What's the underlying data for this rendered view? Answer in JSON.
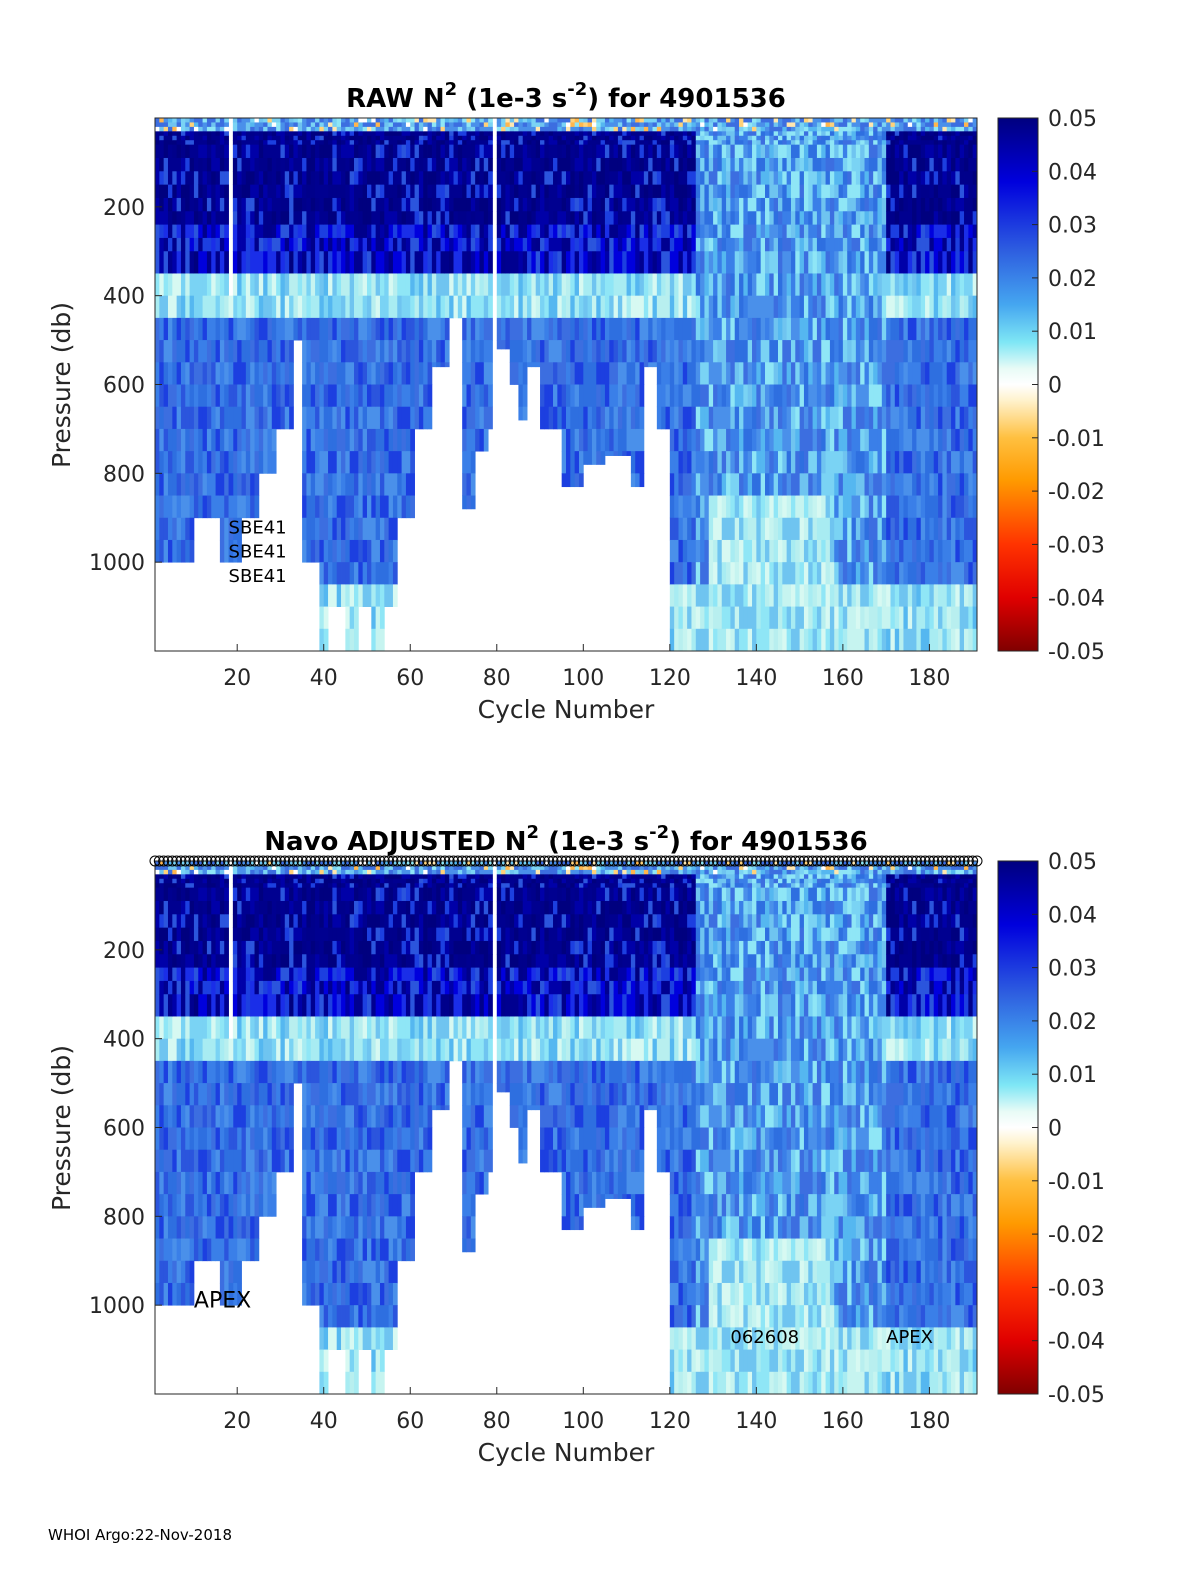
{
  "footer": "WHOI Argo:22-Nov-2018",
  "chart_data": [
    {
      "type": "heatmap",
      "title_parts": {
        "prefix": "RAW N",
        "sup1": "2",
        "mid": " (1e-3 s",
        "sup2": "-2",
        "suffix": ") for 4901536"
      },
      "xlabel": "Cycle Number",
      "ylabel": "Pressure (db)",
      "xlim": [
        1,
        191
      ],
      "ylim": [
        1200,
        0
      ],
      "xticks": [
        20,
        40,
        60,
        80,
        100,
        120,
        140,
        160,
        180
      ],
      "yticks": [
        200,
        400,
        600,
        800,
        1000
      ],
      "colorbar": {
        "min": -0.05,
        "max": 0.05,
        "ticks": [
          "0.05",
          "0.04",
          "0.03",
          "0.02",
          "0.01",
          "0",
          "-0.01",
          "-0.02",
          "-0.03",
          "-0.04",
          "-0.05"
        ]
      },
      "annotations": [
        {
          "text": "SBE41",
          "x": 18,
          "y": 935
        },
        {
          "text": "SBE41",
          "x": 18,
          "y": 990
        },
        {
          "text": "SBE41",
          "x": 18,
          "y": 1045
        }
      ]
    },
    {
      "type": "heatmap",
      "title_parts": {
        "prefix": "Navo  ADJUSTED N",
        "sup1": "2",
        "mid": " (1e-3 s",
        "sup2": "-2",
        "suffix": ") for 4901536"
      },
      "xlabel": "Cycle Number",
      "ylabel": "Pressure (db)",
      "xlim": [
        1,
        191
      ],
      "ylim": [
        1200,
        0
      ],
      "xticks": [
        20,
        40,
        60,
        80,
        100,
        120,
        140,
        160,
        180
      ],
      "yticks": [
        200,
        400,
        600,
        800,
        1000
      ],
      "colorbar": {
        "min": -0.05,
        "max": 0.05,
        "ticks": [
          "0.05",
          "0.04",
          "0.03",
          "0.02",
          "0.01",
          "0",
          "-0.01",
          "-0.02",
          "-0.03",
          "-0.04",
          "-0.05"
        ]
      },
      "qc_markers": "open circles along the top for each cycle",
      "annotations": [
        {
          "text": "APEX",
          "x": 10,
          "y": 1005
        },
        {
          "text": "062608",
          "x": 134,
          "y": 1085
        },
        {
          "text": "APEX",
          "x": 170,
          "y": 1085
        }
      ]
    }
  ],
  "profile_max_depth_db": {
    "description": "approximate deepest pressure reached per cycle range (cycle_start, cycle_end, depth_db)",
    "ranges": [
      [
        1,
        3,
        1000
      ],
      [
        4,
        9,
        1000
      ],
      [
        10,
        15,
        900
      ],
      [
        16,
        20,
        1000
      ],
      [
        21,
        24,
        900
      ],
      [
        25,
        28,
        800
      ],
      [
        29,
        32,
        700
      ],
      [
        33,
        34,
        500
      ],
      [
        35,
        38,
        1000
      ],
      [
        39,
        40,
        1200
      ],
      [
        41,
        44,
        1100
      ],
      [
        45,
        47,
        1200
      ],
      [
        48,
        50,
        1100
      ],
      [
        51,
        53,
        1200
      ],
      [
        54,
        56,
        1100
      ],
      [
        57,
        60,
        900
      ],
      [
        61,
        64,
        700
      ],
      [
        65,
        68,
        560
      ],
      [
        69,
        71,
        450
      ],
      [
        72,
        74,
        880
      ],
      [
        75,
        77,
        750
      ],
      [
        78,
        79,
        700
      ],
      [
        80,
        82,
        520
      ],
      [
        83,
        84,
        600
      ],
      [
        85,
        86,
        680
      ],
      [
        87,
        89,
        560
      ],
      [
        90,
        94,
        700
      ],
      [
        95,
        99,
        830
      ],
      [
        100,
        104,
        780
      ],
      [
        105,
        110,
        760
      ],
      [
        111,
        113,
        830
      ],
      [
        114,
        116,
        560
      ],
      [
        117,
        119,
        700
      ],
      [
        120,
        191,
        1200
      ]
    ]
  }
}
